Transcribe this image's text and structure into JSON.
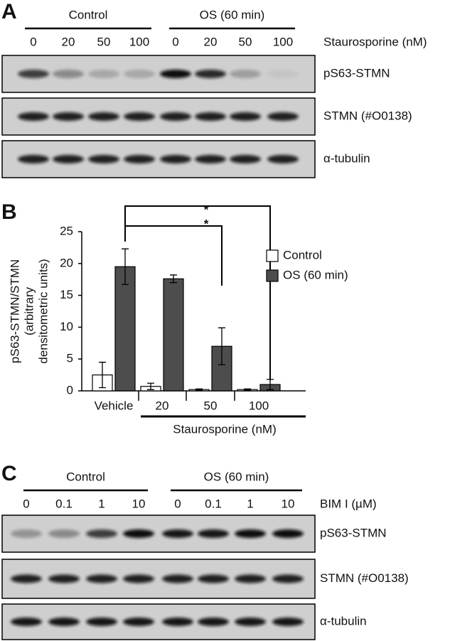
{
  "panel_a": {
    "label": "A",
    "groups": [
      "Control",
      "OS (60 min)"
    ],
    "lanes": [
      "0",
      "20",
      "50",
      "100",
      "0",
      "20",
      "50",
      "100"
    ],
    "lane_axis": "Staurosporine (nM)",
    "blots": [
      "pS63-STMN",
      "STMN (#O0138)",
      "α-tubulin"
    ]
  },
  "chart_data": {
    "type": "bar",
    "label": "B",
    "y_label_lines": [
      "pS63-STMN/STMN",
      "(arbitrary",
      "densitometric units)"
    ],
    "categories": [
      "Vehicle",
      "20",
      "50",
      "100"
    ],
    "x_label": "Staurosporine (nM)",
    "series": [
      {
        "name": "Control",
        "color": "#ffffff",
        "values": [
          2.5,
          0.7,
          0.2,
          0.2
        ],
        "errors": [
          2,
          0.5,
          0.1,
          0.1
        ]
      },
      {
        "name": "OS (60 min)",
        "color": "#4d4d4d",
        "values": [
          19.5,
          17.6,
          7,
          1
        ],
        "errors": [
          2.8,
          0.6,
          2.9,
          0.8
        ]
      }
    ],
    "ylim": [
      0,
      25
    ],
    "yticks": [
      0,
      5,
      10,
      15,
      20,
      25
    ],
    "grid": false,
    "annotations": [
      "*",
      "*"
    ]
  },
  "panel_c": {
    "label": "C",
    "groups": [
      "Control",
      "OS (60 min)"
    ],
    "lanes": [
      "0",
      "0.1",
      "1",
      "10",
      "0",
      "0.1",
      "1",
      "10"
    ],
    "lane_axis": "BIM I (µM)",
    "blots": [
      "pS63-STMN",
      "STMN (#O0138)",
      "α-tubulin"
    ]
  }
}
